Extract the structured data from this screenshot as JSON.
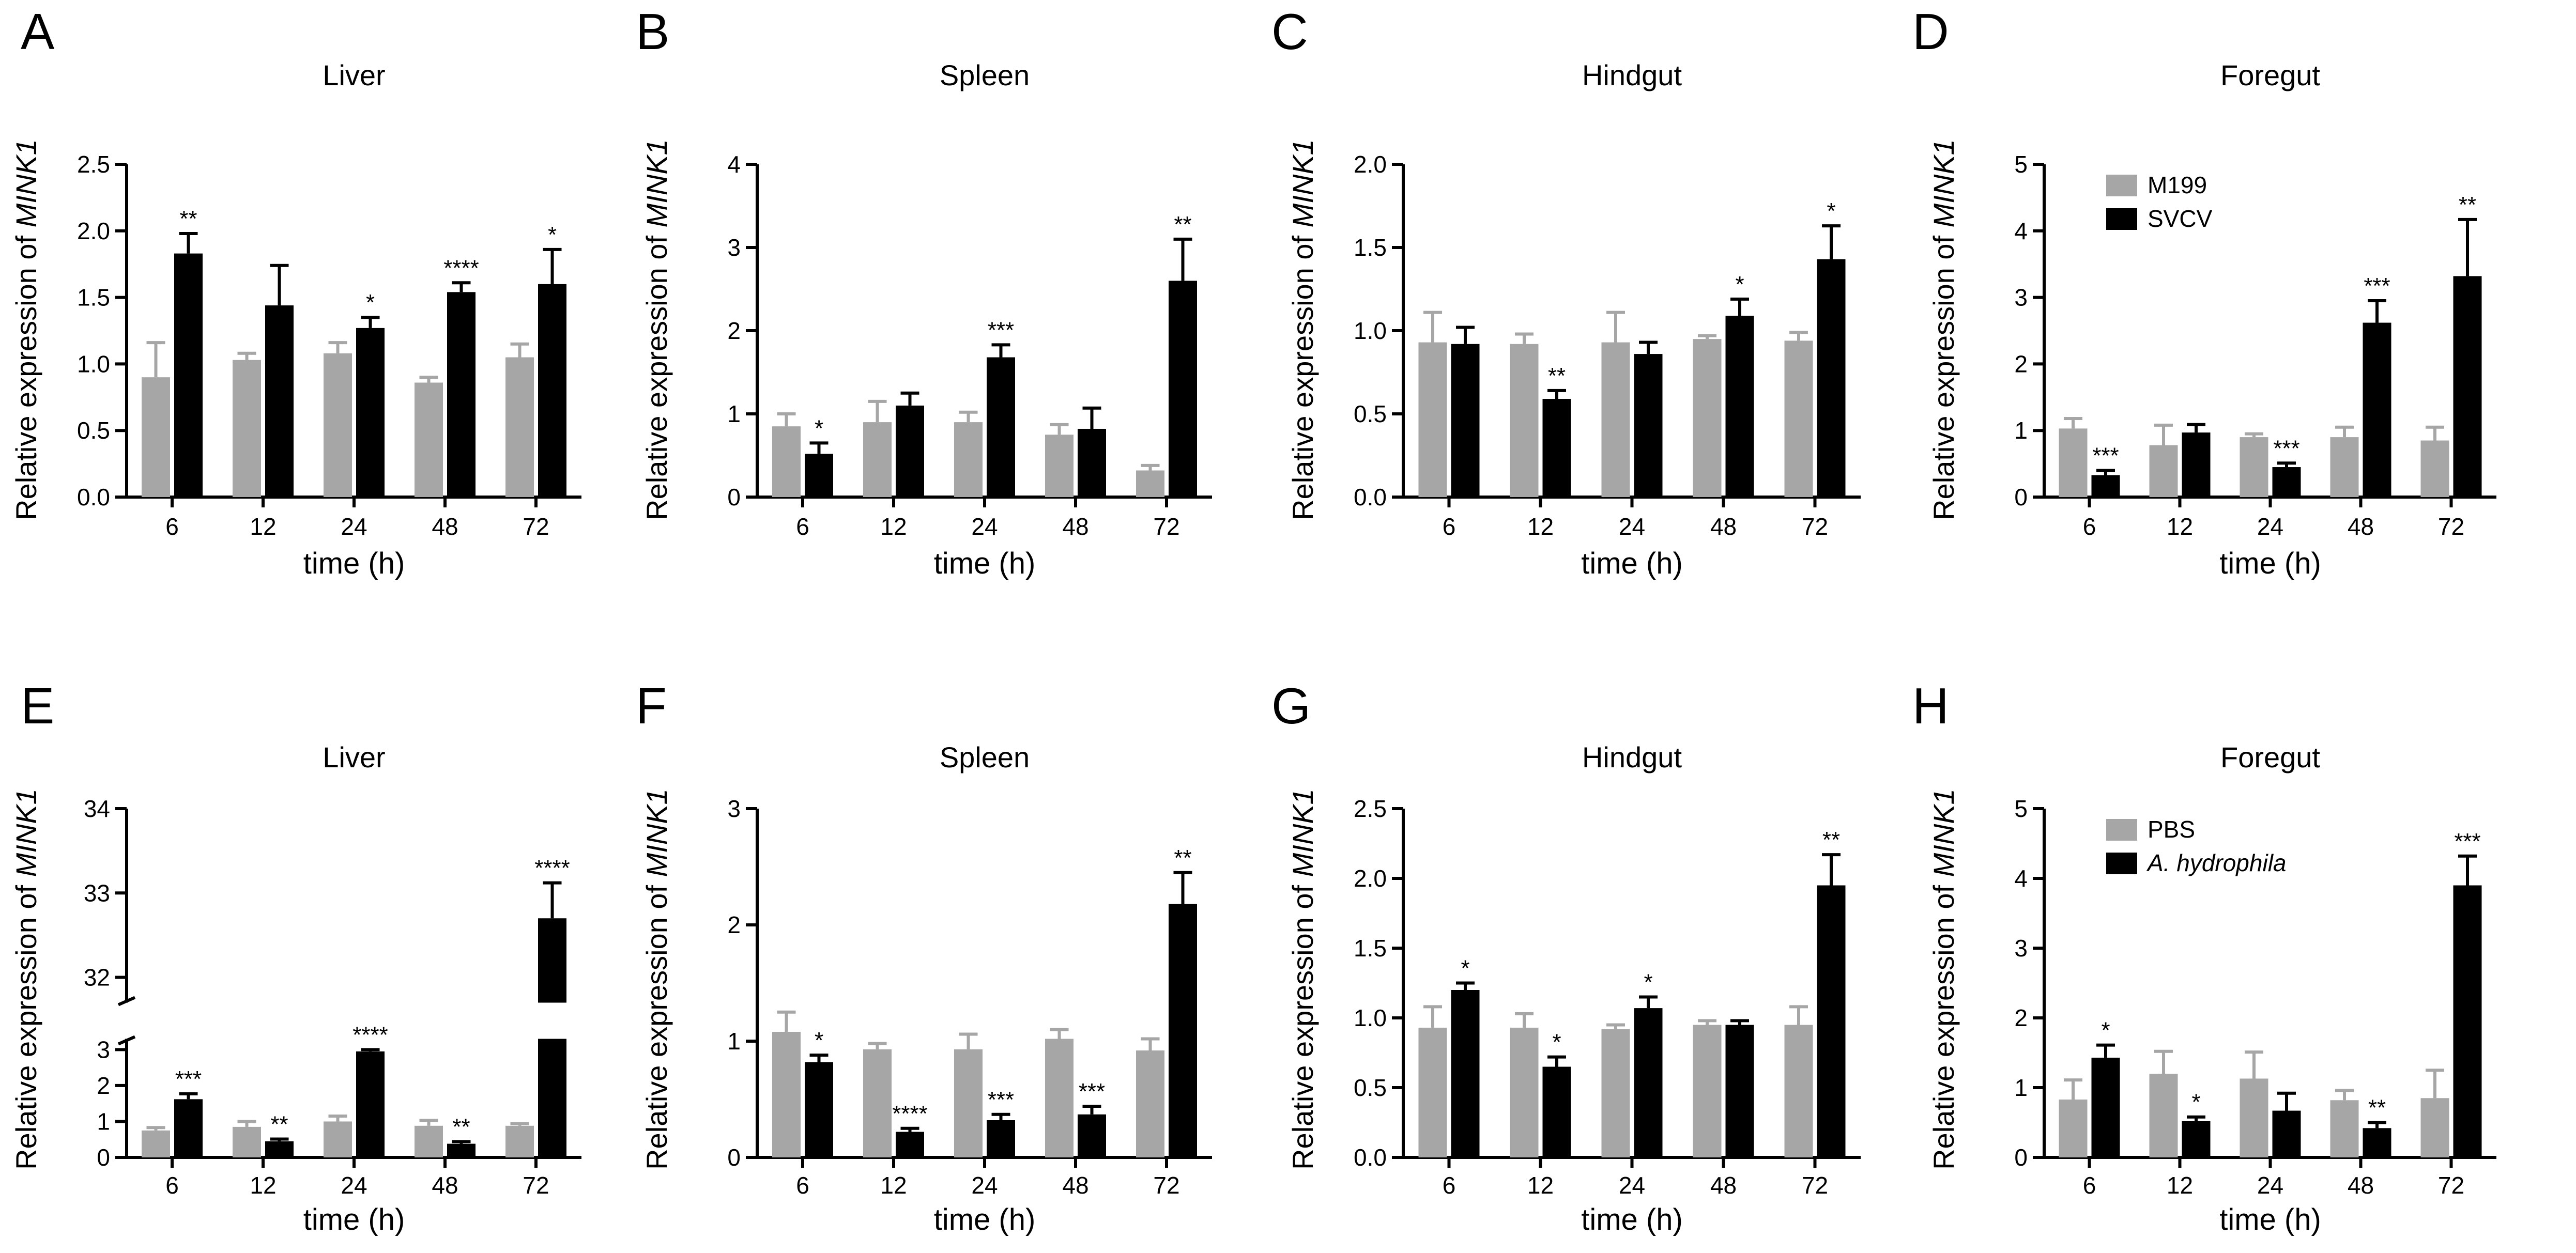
{
  "figure": {
    "row1_legend": [
      "M199",
      "SVCV"
    ],
    "row2_legend": [
      "PBS",
      "A. hydrophila"
    ],
    "colors": {
      "control": "#a6a6a6",
      "treated": "#000000"
    }
  },
  "chart_data": [
    {
      "type": "bar",
      "panel": "A",
      "title": "Liver",
      "xlabel": "time (h)",
      "ylabel_prefix": "Relative expression of ",
      "ylabel_gene": "MINK1",
      "categories": [
        "6",
        "12",
        "24",
        "48",
        "72"
      ],
      "ylim": [
        0,
        2.5
      ],
      "yticks": [
        0,
        0.5,
        1.0,
        1.5,
        2.0,
        2.5
      ],
      "ytick_labels": [
        "0.0",
        "0.5",
        "1.0",
        "1.5",
        "2.0",
        "2.5"
      ],
      "series": [
        {
          "name": "M199",
          "values": [
            0.9,
            1.03,
            1.08,
            0.86,
            1.05
          ],
          "errors": [
            0.26,
            0.05,
            0.08,
            0.04,
            0.1
          ]
        },
        {
          "name": "SVCV",
          "values": [
            1.83,
            1.44,
            1.27,
            1.54,
            1.6
          ],
          "errors": [
            0.15,
            0.3,
            0.08,
            0.07,
            0.26
          ]
        }
      ],
      "significance": [
        "**",
        "",
        "*",
        "****",
        "*"
      ]
    },
    {
      "type": "bar",
      "panel": "B",
      "title": "Spleen",
      "xlabel": "time (h)",
      "ylabel_prefix": "Relative expression of ",
      "ylabel_gene": "MINK1",
      "categories": [
        "6",
        "12",
        "24",
        "48",
        "72"
      ],
      "ylim": [
        0,
        4
      ],
      "yticks": [
        0,
        1,
        2,
        3,
        4
      ],
      "ytick_labels": [
        "0",
        "1",
        "2",
        "3",
        "4"
      ],
      "series": [
        {
          "name": "M199",
          "values": [
            0.85,
            0.9,
            0.9,
            0.75,
            0.32
          ],
          "errors": [
            0.15,
            0.25,
            0.12,
            0.12,
            0.06
          ]
        },
        {
          "name": "SVCV",
          "values": [
            0.52,
            1.1,
            1.68,
            0.82,
            2.6
          ],
          "errors": [
            0.13,
            0.15,
            0.15,
            0.25,
            0.5
          ]
        }
      ],
      "significance": [
        "*",
        "",
        "***",
        "",
        "**"
      ]
    },
    {
      "type": "bar",
      "panel": "C",
      "title": "Hindgut",
      "xlabel": "time (h)",
      "ylabel_prefix": "Relative expression of ",
      "ylabel_gene": "MINK1",
      "categories": [
        "6",
        "12",
        "24",
        "48",
        "72"
      ],
      "ylim": [
        0,
        2.0
      ],
      "yticks": [
        0,
        0.5,
        1.0,
        1.5,
        2.0
      ],
      "ytick_labels": [
        "0.0",
        "0.5",
        "1.0",
        "1.5",
        "2.0"
      ],
      "series": [
        {
          "name": "M199",
          "values": [
            0.93,
            0.92,
            0.93,
            0.95,
            0.94
          ],
          "errors": [
            0.18,
            0.06,
            0.18,
            0.02,
            0.05
          ]
        },
        {
          "name": "SVCV",
          "values": [
            0.92,
            0.59,
            0.86,
            1.09,
            1.43
          ],
          "errors": [
            0.1,
            0.05,
            0.07,
            0.1,
            0.2
          ]
        }
      ],
      "significance": [
        "",
        "**",
        "",
        "*",
        "*"
      ]
    },
    {
      "type": "bar",
      "panel": "D",
      "title": "Foregut",
      "xlabel": "time (h)",
      "ylabel_prefix": "Relative expression of ",
      "ylabel_gene": "MINK1",
      "categories": [
        "6",
        "12",
        "24",
        "48",
        "72"
      ],
      "ylim": [
        0,
        5
      ],
      "yticks": [
        0,
        1,
        2,
        3,
        4,
        5
      ],
      "ytick_labels": [
        "0",
        "1",
        "2",
        "3",
        "4",
        "5"
      ],
      "legend": true,
      "series": [
        {
          "name": "M199",
          "values": [
            1.03,
            0.78,
            0.9,
            0.9,
            0.85
          ],
          "errors": [
            0.15,
            0.3,
            0.05,
            0.15,
            0.2
          ]
        },
        {
          "name": "SVCV",
          "values": [
            0.33,
            0.97,
            0.45,
            2.62,
            3.32
          ],
          "errors": [
            0.07,
            0.12,
            0.06,
            0.33,
            0.85
          ]
        }
      ],
      "significance": [
        "***",
        "",
        "***",
        "***",
        "**"
      ]
    },
    {
      "type": "bar",
      "panel": "E",
      "title": "Liver",
      "xlabel": "time (h)",
      "ylabel_prefix": "Relative expression of ",
      "ylabel_gene": "MINK1",
      "categories": [
        "6",
        "12",
        "24",
        "48",
        "72"
      ],
      "broken_axis": {
        "lower": [
          0,
          3.3
        ],
        "upper": [
          31.7,
          34
        ]
      },
      "ylim": [
        0,
        34
      ],
      "yticks": [
        0,
        1,
        2,
        3,
        32,
        33,
        34
      ],
      "ytick_labels": [
        "0",
        "1",
        "2",
        "3",
        "32",
        "33",
        "34"
      ],
      "series": [
        {
          "name": "PBS",
          "values": [
            0.75,
            0.85,
            1.0,
            0.88,
            0.88
          ],
          "errors": [
            0.08,
            0.15,
            0.15,
            0.15,
            0.06
          ]
        },
        {
          "name": "A. hydrophila",
          "values": [
            1.62,
            0.45,
            2.95,
            0.38,
            32.7
          ],
          "errors": [
            0.15,
            0.06,
            0.05,
            0.06,
            0.42
          ]
        }
      ],
      "significance": [
        "***",
        "**",
        "****",
        "**",
        "****"
      ]
    },
    {
      "type": "bar",
      "panel": "F",
      "title": "Spleen",
      "xlabel": "time (h)",
      "ylabel_prefix": "Relative expression of ",
      "ylabel_gene": "MINK1",
      "categories": [
        "6",
        "12",
        "24",
        "48",
        "72"
      ],
      "ylim": [
        0,
        3
      ],
      "yticks": [
        0,
        1,
        2,
        3
      ],
      "ytick_labels": [
        "0",
        "1",
        "2",
        "3"
      ],
      "series": [
        {
          "name": "PBS",
          "values": [
            1.08,
            0.93,
            0.93,
            1.02,
            0.92
          ],
          "errors": [
            0.17,
            0.05,
            0.13,
            0.08,
            0.1
          ]
        },
        {
          "name": "A. hydrophila",
          "values": [
            0.82,
            0.22,
            0.32,
            0.37,
            2.18
          ],
          "errors": [
            0.06,
            0.03,
            0.05,
            0.07,
            0.27
          ]
        }
      ],
      "significance": [
        "*",
        "****",
        "***",
        "***",
        "**"
      ]
    },
    {
      "type": "bar",
      "panel": "G",
      "title": "Hindgut",
      "xlabel": "time (h)",
      "ylabel_prefix": "Relative expression of ",
      "ylabel_gene": "MINK1",
      "categories": [
        "6",
        "12",
        "24",
        "48",
        "72"
      ],
      "ylim": [
        0,
        2.5
      ],
      "yticks": [
        0,
        0.5,
        1.0,
        1.5,
        2.0,
        2.5
      ],
      "ytick_labels": [
        "0.0",
        "0.5",
        "1.0",
        "1.5",
        "2.0",
        "2.5"
      ],
      "series": [
        {
          "name": "PBS",
          "values": [
            0.93,
            0.93,
            0.92,
            0.95,
            0.95
          ],
          "errors": [
            0.15,
            0.1,
            0.03,
            0.03,
            0.13
          ]
        },
        {
          "name": "A. hydrophila",
          "values": [
            1.2,
            0.65,
            1.07,
            0.95,
            1.95
          ],
          "errors": [
            0.05,
            0.07,
            0.08,
            0.03,
            0.22
          ]
        }
      ],
      "significance": [
        "*",
        "*",
        "*",
        "",
        "**"
      ]
    },
    {
      "type": "bar",
      "panel": "H",
      "title": "Foregut",
      "xlabel": "time (h)",
      "ylabel_prefix": "Relative expression of ",
      "ylabel_gene": "MINK1",
      "categories": [
        "6",
        "12",
        "24",
        "48",
        "72"
      ],
      "ylim": [
        0,
        5
      ],
      "yticks": [
        0,
        1,
        2,
        3,
        4,
        5
      ],
      "ytick_labels": [
        "0",
        "1",
        "2",
        "3",
        "4",
        "5"
      ],
      "legend": true,
      "series": [
        {
          "name": "PBS",
          "values": [
            0.83,
            1.2,
            1.13,
            0.82,
            0.85
          ],
          "errors": [
            0.28,
            0.32,
            0.38,
            0.14,
            0.4
          ]
        },
        {
          "name": "A. hydrophila",
          "values": [
            1.43,
            0.52,
            0.67,
            0.42,
            3.9
          ],
          "errors": [
            0.18,
            0.06,
            0.25,
            0.08,
            0.42
          ]
        }
      ],
      "significance": [
        "*",
        "*",
        "",
        "**",
        "***"
      ]
    }
  ]
}
